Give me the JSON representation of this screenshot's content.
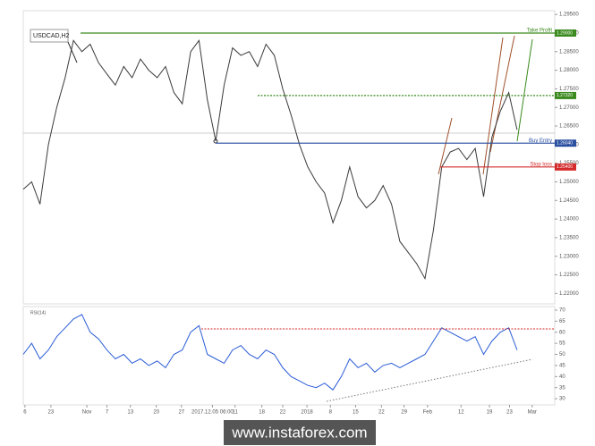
{
  "chart_data": [
    {
      "type": "line",
      "title": "USDCAD,H2",
      "x": [
        0,
        1,
        2,
        3,
        4,
        5,
        6,
        7,
        8,
        9,
        10,
        11,
        12,
        13,
        14,
        15,
        16,
        17,
        18,
        19,
        20,
        21,
        22,
        23,
        24,
        25,
        26,
        27,
        28,
        29,
        30,
        31,
        32,
        33,
        34,
        35,
        36,
        37,
        38,
        39,
        40,
        41,
        42,
        43,
        44,
        45,
        46,
        47,
        48,
        49,
        50,
        51,
        52,
        53,
        54,
        55,
        56,
        57,
        58,
        59
      ],
      "series": [
        {
          "name": "USDCAD",
          "color": "#3a3a3a",
          "values": [
            1.248,
            1.25,
            1.244,
            1.26,
            1.27,
            1.278,
            1.288,
            1.285,
            1.287,
            1.282,
            1.279,
            1.276,
            1.281,
            1.278,
            1.283,
            1.28,
            1.278,
            1.281,
            1.274,
            1.271,
            1.285,
            1.288,
            1.272,
            1.261,
            1.276,
            1.286,
            1.284,
            1.285,
            1.281,
            1.287,
            1.284,
            1.275,
            1.268,
            1.26,
            1.254,
            1.25,
            1.247,
            1.239,
            1.245,
            1.254,
            1.246,
            1.243,
            1.245,
            1.249,
            1.244,
            1.234,
            1.231,
            1.228,
            1.224,
            1.237,
            1.254,
            1.258,
            1.259,
            1.256,
            1.259,
            1.246,
            1.262,
            1.269,
            1.274,
            1.264
          ]
        }
      ],
      "xlim": [
        0,
        63.5
      ],
      "xticks": [
        {
          "value": 0.2,
          "label": "6"
        },
        {
          "value": 3.3,
          "label": "23"
        },
        {
          "value": 7.6,
          "label": "Nov"
        },
        {
          "value": 10,
          "label": "7"
        },
        {
          "value": 12.8,
          "label": "13"
        },
        {
          "value": 15.9,
          "label": "20"
        },
        {
          "value": 18.9,
          "label": "27"
        },
        {
          "value": 22.6,
          "label": "2017.12.05 06:00"
        },
        {
          "value": 25.3,
          "label": "11"
        },
        {
          "value": 28.5,
          "label": "18"
        },
        {
          "value": 31,
          "label": "22"
        },
        {
          "value": 33.9,
          "label": "2018"
        },
        {
          "value": 36.7,
          "label": "8"
        },
        {
          "value": 39.7,
          "label": "15"
        },
        {
          "value": 42.8,
          "label": "22"
        },
        {
          "value": 45.5,
          "label": "29"
        },
        {
          "value": 48.3,
          "label": "Feb"
        },
        {
          "value": 52.3,
          "label": "12"
        },
        {
          "value": 55.7,
          "label": "19"
        },
        {
          "value": 58.1,
          "label": "23"
        },
        {
          "value": 60.8,
          "label": "Mar"
        }
      ],
      "ylim": [
        1.2172,
        1.296
      ],
      "yticks": [
        {
          "value": 1.22,
          "label": "1.22000"
        },
        {
          "value": 1.225,
          "label": "1.22500"
        },
        {
          "value": 1.23,
          "label": "1.23000"
        },
        {
          "value": 1.235,
          "label": "1.23500"
        },
        {
          "value": 1.24,
          "label": "1.24000"
        },
        {
          "value": 1.245,
          "label": "1.24500"
        },
        {
          "value": 1.25,
          "label": "1.25000"
        },
        {
          "value": 1.255,
          "label": "1.25500"
        },
        {
          "value": 1.26,
          "label": "1.26000"
        },
        {
          "value": 1.265,
          "label": "1.26500"
        },
        {
          "value": 1.27,
          "label": "1.27000"
        },
        {
          "value": 1.275,
          "label": "1.27500"
        },
        {
          "value": 1.28,
          "label": "1.28000"
        },
        {
          "value": 1.285,
          "label": "1.28500"
        },
        {
          "value": 1.29,
          "label": "1.29000"
        },
        {
          "value": 1.295,
          "label": "1.29500"
        }
      ],
      "levels": [
        {
          "name": "Take Profit",
          "value": 1.29,
          "value_label": "1.29000",
          "color": "#3a8a1e"
        },
        {
          "value": 1.2732,
          "value_label": "1.27320",
          "color": "#3a8a1e"
        },
        {
          "name": "Buy Entry",
          "value": 1.2604,
          "value_label": "1.26040",
          "color": "#2a4fa0"
        },
        {
          "name": "Stop loss",
          "value": 1.254,
          "value_label": "1.25400",
          "color": "#d42a2a"
        }
      ]
    },
    {
      "type": "line",
      "title": "RSI(14)",
      "series": [
        {
          "name": "RSI",
          "color": "#2a5bd7",
          "values": [
            50,
            55,
            48,
            52,
            58,
            62,
            66,
            68,
            60,
            57,
            52,
            48,
            50,
            46,
            48,
            45,
            47,
            44,
            50,
            52,
            60,
            63,
            50,
            48,
            46,
            52,
            54,
            50,
            48,
            52,
            50,
            44,
            40,
            38,
            36,
            35,
            37,
            34,
            40,
            48,
            44,
            46,
            42,
            45,
            46,
            44,
            46,
            48,
            50,
            56,
            62,
            60,
            58,
            56,
            58,
            50,
            56,
            60,
            62,
            52
          ]
        }
      ],
      "ylim": [
        27.2,
        71.6
      ],
      "yticks": [
        30,
        35,
        40,
        45,
        50,
        55,
        60,
        65,
        70
      ],
      "level": 61.5
    }
  ],
  "watermark": "www.instaforex.com"
}
